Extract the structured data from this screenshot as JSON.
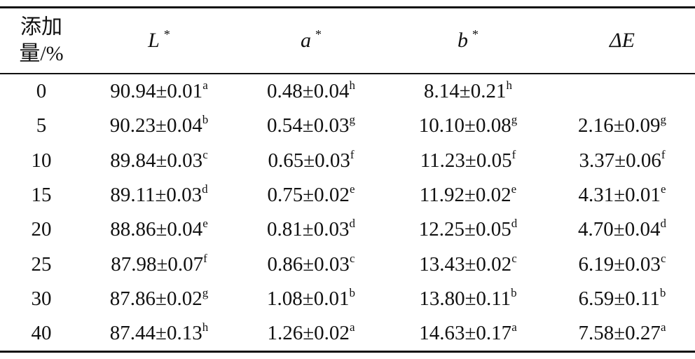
{
  "table": {
    "header": [
      {
        "lines": [
          "添加",
          "量/%"
        ]
      },
      {
        "text": "L",
        "sup": "*"
      },
      {
        "text": "a",
        "sup": "*"
      },
      {
        "text": "b",
        "sup": "*"
      },
      {
        "text": "ΔE"
      }
    ],
    "rows": [
      [
        "0",
        {
          "value": "90.94±0.01",
          "sup": "a"
        },
        {
          "value": "0.48±0.04",
          "sup": "h"
        },
        {
          "value": "8.14±0.21",
          "sup": "h"
        },
        null
      ],
      [
        "5",
        {
          "value": "90.23±0.04",
          "sup": "b"
        },
        {
          "value": "0.54±0.03",
          "sup": "g"
        },
        {
          "value": "10.10±0.08",
          "sup": "g"
        },
        {
          "value": "2.16±0.09",
          "sup": "g"
        }
      ],
      [
        "10",
        {
          "value": "89.84±0.03",
          "sup": "c"
        },
        {
          "value": "0.65±0.03",
          "sup": "f"
        },
        {
          "value": "11.23±0.05",
          "sup": "f"
        },
        {
          "value": "3.37±0.06",
          "sup": "f"
        }
      ],
      [
        "15",
        {
          "value": "89.11±0.03",
          "sup": "d"
        },
        {
          "value": "0.75±0.02",
          "sup": "e"
        },
        {
          "value": "11.92±0.02",
          "sup": "e"
        },
        {
          "value": "4.31±0.01",
          "sup": "e"
        }
      ],
      [
        "20",
        {
          "value": "88.86±0.04",
          "sup": "e"
        },
        {
          "value": "0.81±0.03",
          "sup": "d"
        },
        {
          "value": "12.25±0.05",
          "sup": "d"
        },
        {
          "value": "4.70±0.04",
          "sup": "d"
        }
      ],
      [
        "25",
        {
          "value": "87.98±0.07",
          "sup": "f"
        },
        {
          "value": "0.86±0.03",
          "sup": "c"
        },
        {
          "value": "13.43±0.02",
          "sup": "c"
        },
        {
          "value": "6.19±0.03",
          "sup": "c"
        }
      ],
      [
        "30",
        {
          "value": "87.86±0.02",
          "sup": "g"
        },
        {
          "value": "1.08±0.01",
          "sup": "b"
        },
        {
          "value": "13.80±0.11",
          "sup": "b"
        },
        {
          "value": "6.59±0.11",
          "sup": "b"
        }
      ],
      [
        "40",
        {
          "value": "87.44±0.13",
          "sup": "h"
        },
        {
          "value": "1.26±0.02",
          "sup": "a"
        },
        {
          "value": "14.63±0.17",
          "sup": "a"
        },
        {
          "value": "7.58±0.27",
          "sup": "a"
        }
      ]
    ]
  }
}
